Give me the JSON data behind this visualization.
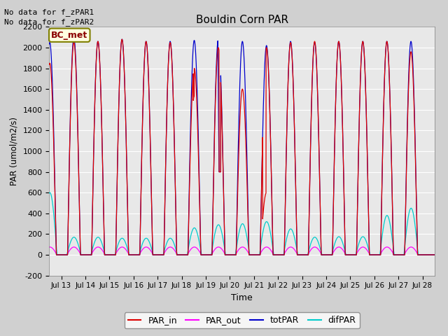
{
  "title": "Bouldin Corn PAR",
  "ylabel": "PAR (umol/m2/s)",
  "xlabel": "Time",
  "ylim": [
    -200,
    2200
  ],
  "no_data_text1": "No data for f_zPAR1",
  "no_data_text2": "No data for f_zPAR2",
  "bc_met_label": "BC_met",
  "legend_entries": [
    "PAR_in",
    "PAR_out",
    "totPAR",
    "difPAR"
  ],
  "par_in_color": "#dd0000",
  "par_out_color": "#ff00ff",
  "totpar_color": "#0000cc",
  "difpar_color": "#00cccc",
  "xtick_labels": [
    "Jul 13",
    "Jul 14",
    "Jul 15",
    "Jul 16",
    "Jul 17",
    "Jul 18",
    "Jul 19",
    "Jul 20",
    "Jul 21",
    "Jul 22",
    "Jul 23",
    "Jul 24",
    "Jul 25",
    "Jul 26",
    "Jul 27",
    "Jul 28"
  ],
  "ytick_vals": [
    -200,
    0,
    200,
    400,
    600,
    800,
    1000,
    1200,
    1400,
    1600,
    1800,
    2000,
    2200
  ],
  "totpar_peaks": [
    2050,
    2100,
    2060,
    2080,
    2060,
    2060,
    2070,
    2080,
    2060,
    2020,
    2060,
    2050,
    2060,
    2060,
    2060,
    2060
  ],
  "par_in_peaks": [
    1850,
    2050,
    2060,
    2080,
    2060,
    2050,
    1800,
    2000,
    1600,
    2000,
    2050,
    2060,
    2060,
    2060,
    2060,
    1960
  ],
  "difpar_peaks": [
    600,
    170,
    170,
    160,
    160,
    160,
    260,
    290,
    300,
    320,
    250,
    170,
    175,
    175,
    380,
    450
  ],
  "par_out_peak": 75,
  "day_rise": 0.26,
  "day_fall": 0.79,
  "day_peak": 0.52
}
